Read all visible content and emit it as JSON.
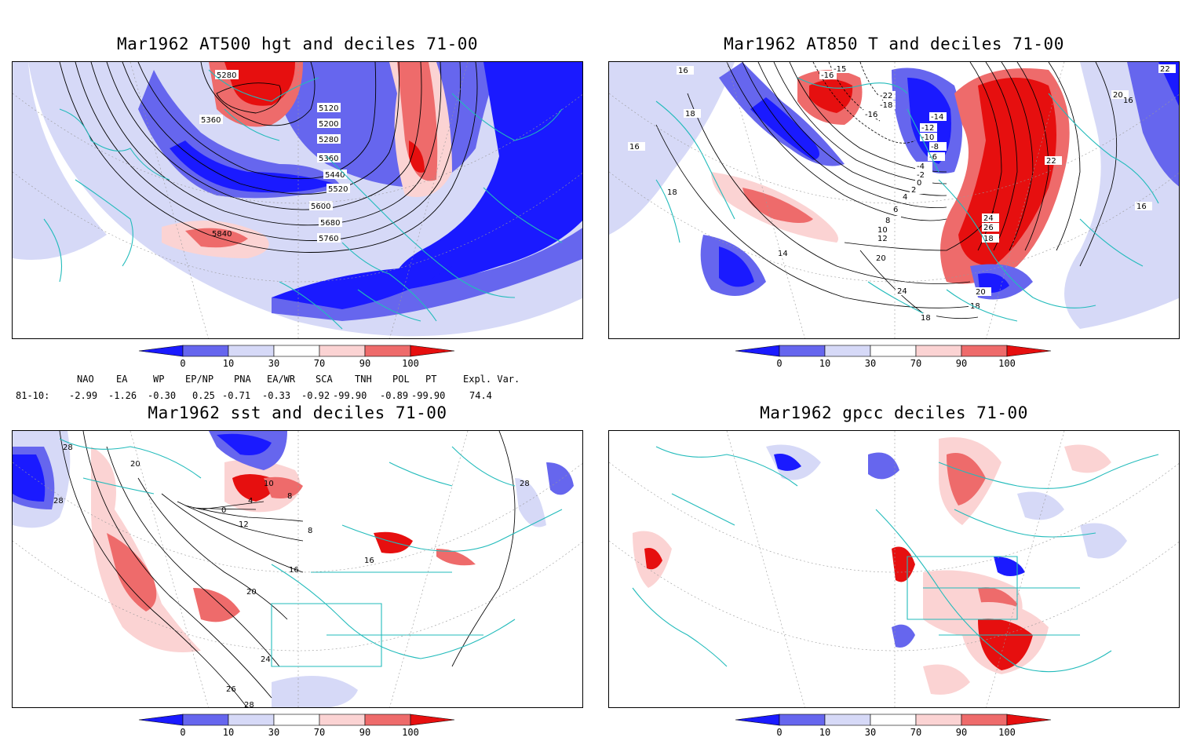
{
  "panels": {
    "hgt": {
      "title": "Mar1962 AT500 hgt and deciles 71-00",
      "contour_labels": [
        "5280",
        "5360",
        "5120",
        "5200",
        "5280",
        "5360",
        "5440",
        "5520",
        "5600",
        "5680",
        "5760",
        "5840"
      ]
    },
    "t850": {
      "title": "Mar1962 AT850 T and deciles 71-00",
      "contour_labels": [
        "-15",
        "-16",
        "-22",
        "-18",
        "-16",
        "-14",
        "-12",
        "-10",
        "-8",
        "-6",
        "-4",
        "-2",
        "0",
        "2",
        "4",
        "6",
        "8",
        "10",
        "12",
        "14",
        "16",
        "18",
        "20",
        "22",
        "24",
        "26",
        "18",
        "16",
        "18",
        "20",
        "22",
        "24",
        "18",
        "16",
        "20",
        "18",
        "16"
      ]
    },
    "sst": {
      "title": "Mar1962 sst and deciles 71-00",
      "contour_labels": [
        "28",
        "20",
        "28",
        "0",
        "4",
        "8",
        "10",
        "12",
        "16",
        "20",
        "24",
        "26",
        "28",
        "16",
        "8",
        "28"
      ]
    },
    "gpcc": {
      "title": "Mar1962 gpcc deciles 71-00"
    }
  },
  "colorbar": {
    "ticks": [
      "0",
      "10",
      "30",
      "70",
      "90",
      "100"
    ],
    "colors": [
      "#1a1aff",
      "#6666ee",
      "#d6d9f7",
      "#ffffff",
      "#fbd3d3",
      "#ee6b6b",
      "#e60f0f"
    ]
  },
  "indices": {
    "headers": [
      "NAO",
      "EA",
      "WP",
      "EP/NP",
      "PNA",
      "EA/WR",
      "SCA",
      "TNH",
      "POL",
      "PT",
      "Expl. Var."
    ],
    "row_label": "81-10:",
    "values": [
      "-2.99",
      "-1.26",
      "-0.30",
      "0.25",
      "-0.71",
      "-0.33",
      "-0.92",
      "-99.90",
      "-0.89",
      "-99.90",
      "74.4"
    ]
  }
}
